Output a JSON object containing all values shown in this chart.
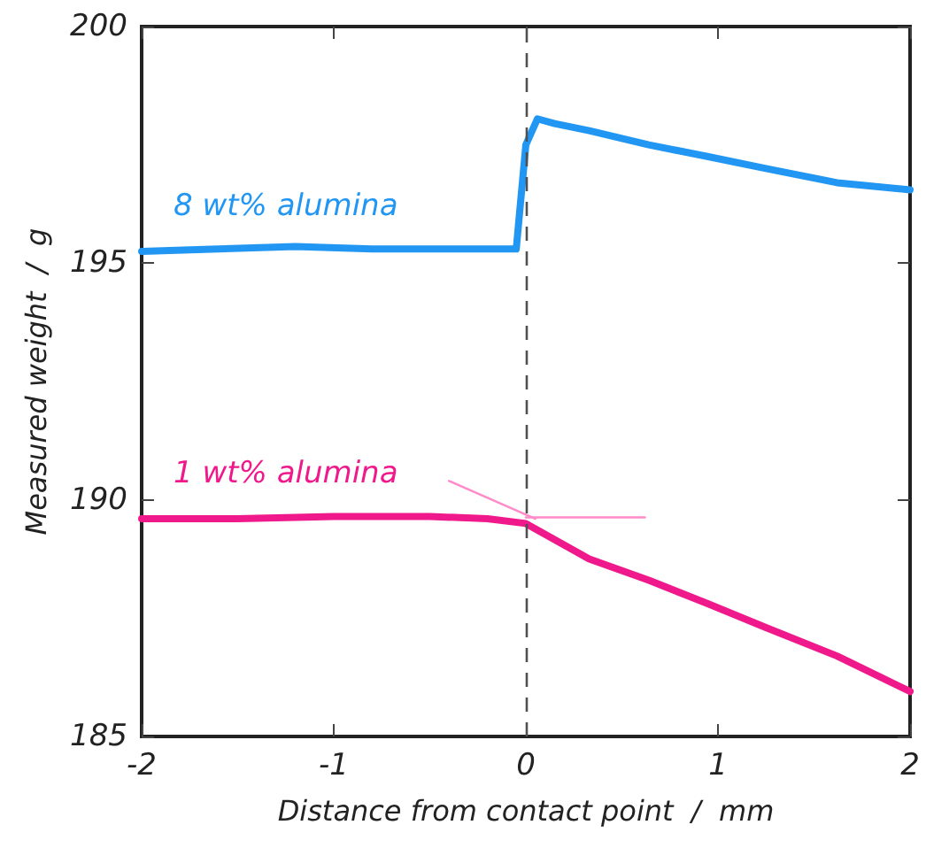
{
  "chart_data": {
    "type": "line",
    "xlabel": "Distance from contact point  /  mm",
    "ylabel": "Measured weight  /  g",
    "xlim": [
      -2,
      2
    ],
    "xticks": [
      -2,
      -1,
      0,
      1,
      2
    ],
    "ylim": [
      185,
      200
    ],
    "yticks": [
      185,
      190,
      195,
      200
    ],
    "grid": false,
    "marker": "none",
    "line_style": "solid",
    "series": [
      {
        "name": "8 wt% alumina",
        "color": "#2196f3",
        "x": [
          -2,
          -1.6,
          -1.2,
          -0.8,
          -0.4,
          -0.05,
          0,
          0.06,
          0.15,
          0.33,
          0.64,
          0.95,
          1.25,
          1.62,
          2
        ],
        "values": [
          195.25,
          195.3,
          195.35,
          195.3,
          195.3,
          195.3,
          197.5,
          198.05,
          197.95,
          197.8,
          197.5,
          197.25,
          197.0,
          196.7,
          196.55
        ]
      },
      {
        "name": "1 wt% alumina",
        "color": "#f0198c",
        "x": [
          -2,
          -1.5,
          -1,
          -0.5,
          -0.2,
          0,
          0.33,
          0.64,
          0.95,
          1.25,
          1.62,
          2
        ],
        "values": [
          189.6,
          189.6,
          189.65,
          189.65,
          189.6,
          189.5,
          188.75,
          188.3,
          187.8,
          187.3,
          186.7,
          185.95
        ]
      },
      {
        "color": "#ff8cc8",
        "x": [
          -0.4,
          0.05
        ],
        "values": [
          190.4,
          189.6
        ]
      },
      {
        "color": "#ff8cc8",
        "x": [
          0,
          0.62
        ],
        "values": [
          189.63,
          189.63
        ]
      }
    ],
    "ref_lines": [
      {
        "axis": "x",
        "value": 0,
        "color": "#505050",
        "line_style": "dashed"
      }
    ]
  }
}
